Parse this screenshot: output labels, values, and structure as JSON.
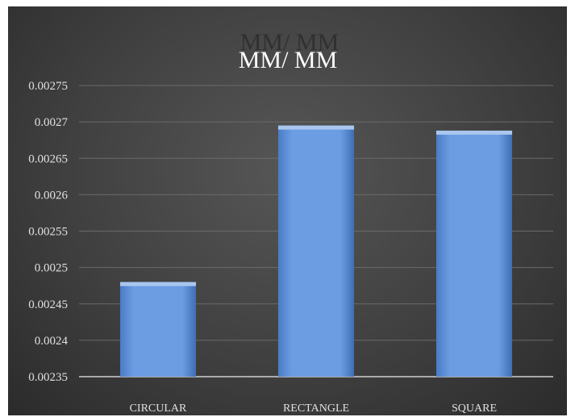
{
  "chart_data": {
    "type": "bar",
    "title": "MM/ MM",
    "categories": [
      "CIRCULAR",
      "RECTANGLE",
      "SQUARE"
    ],
    "values": [
      0.00248,
      0.002695,
      0.002688
    ],
    "ylim": [
      0.00235,
      0.00275
    ],
    "yticks": [
      0.00235,
      0.0024,
      0.00245,
      0.0025,
      0.00255,
      0.0026,
      0.00265,
      0.0027,
      0.00275
    ],
    "ytick_labels": [
      "0.00235",
      "0.0024",
      "0.00245",
      "0.0025",
      "0.00255",
      "0.0026",
      "0.00265",
      "0.0027",
      "0.00275"
    ],
    "grid": true,
    "legend": "none",
    "bar_color": "#5b8fd8",
    "background_color": "#444444"
  }
}
